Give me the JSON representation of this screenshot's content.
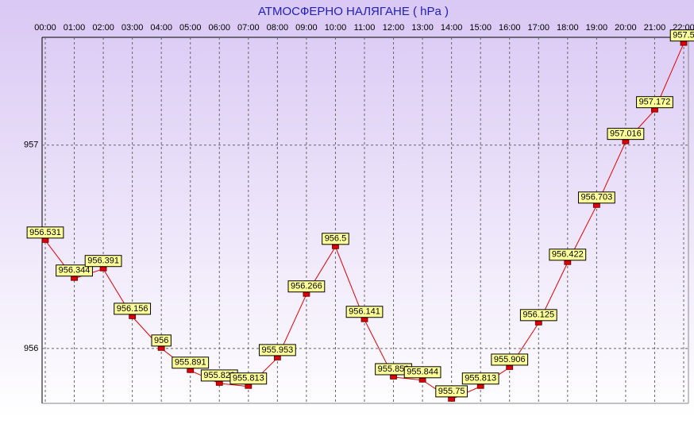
{
  "chart_data": {
    "type": "line",
    "title": "АТМОСФЕРНО НАЛЯГАНЕ  ( hPa )",
    "categories": [
      "00:00",
      "01:00",
      "02:00",
      "03:00",
      "04:00",
      "05:00",
      "06:00",
      "07:00",
      "08:00",
      "09:00",
      "10:00",
      "11:00",
      "12:00",
      "13:00",
      "14:00",
      "15:00",
      "16:00",
      "17:00",
      "18:00",
      "19:00",
      "20:00",
      "21:00",
      "22:00"
    ],
    "series": [
      {
        "name": "hPa",
        "color": "#e00000",
        "values": [
          956.531,
          956.344,
          956.391,
          956.156,
          956,
          955.891,
          955.828,
          955.813,
          955.953,
          956.266,
          956.5,
          956.141,
          955.859,
          955.844,
          955.75,
          955.813,
          955.906,
          956.125,
          956.422,
          956.703,
          957.016,
          957.172,
          957.5
        ]
      }
    ],
    "ylim": [
      955.73,
      957.53
    ],
    "yticks": [
      956,
      957
    ],
    "grid": true
  }
}
